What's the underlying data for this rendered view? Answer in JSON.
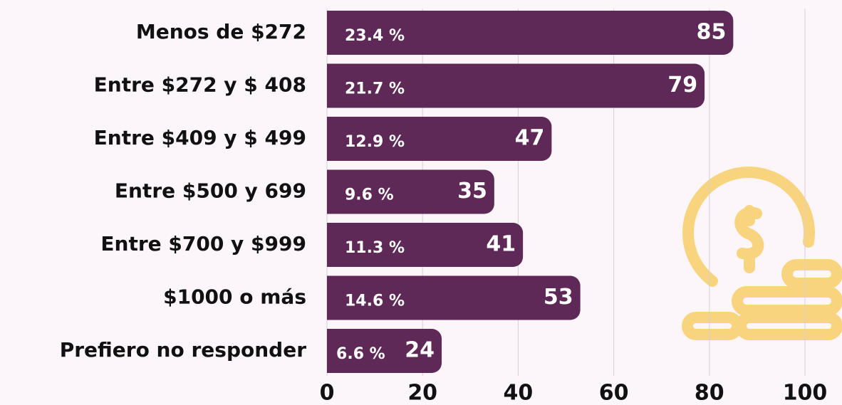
{
  "chart_data": {
    "type": "bar",
    "orientation": "horizontal",
    "categories": [
      "Menos de $272",
      "Entre $272 y $ 408",
      "Entre $409 y $ 499",
      "Entre $500 y 699",
      "Entre $700 y $999",
      "$1000 o más",
      "Prefiero no responder"
    ],
    "values": [
      85,
      79,
      47,
      35,
      41,
      53,
      24
    ],
    "percent_labels": [
      "23.4 %",
      "21.7 %",
      "12.9 %",
      "9.6 %",
      "11.3 %",
      "14.6 %",
      "6.6 %"
    ],
    "color": "#5e2857",
    "xlim": [
      0,
      100
    ],
    "xticks": [
      0,
      20,
      40,
      60,
      80,
      100
    ],
    "grid": true
  }
}
